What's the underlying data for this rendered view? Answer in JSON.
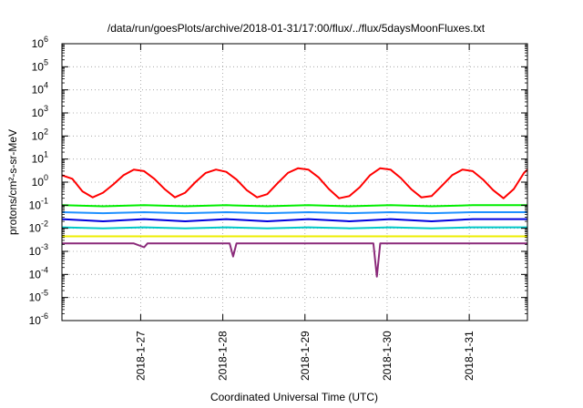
{
  "chart_data": {
    "type": "line",
    "title": "/data/run/goesPlots/archive/2018-01-31/17:00/flux/../flux/5daysMoonFluxes.txt",
    "xlabel": "Coordinated Universal Time (UTC)",
    "ylabel": "protons/cm²-s-sr-MeV",
    "y_scale": "log",
    "ylim": [
      1e-06,
      1000000.0
    ],
    "y_ticks": [
      {
        "value": 1e-06,
        "base": "10",
        "exp": "-6"
      },
      {
        "value": 1e-05,
        "base": "10",
        "exp": "-5"
      },
      {
        "value": 0.0001,
        "base": "10",
        "exp": "-4"
      },
      {
        "value": 0.001,
        "base": "10",
        "exp": "-3"
      },
      {
        "value": 0.01,
        "base": "10",
        "exp": "-2"
      },
      {
        "value": 0.1,
        "base": "10",
        "exp": "-1"
      },
      {
        "value": 1,
        "base": "10",
        "exp": "0"
      },
      {
        "value": 10,
        "base": "10",
        "exp": "1"
      },
      {
        "value": 100,
        "base": "10",
        "exp": "2"
      },
      {
        "value": 1000,
        "base": "10",
        "exp": "3"
      },
      {
        "value": 10000,
        "base": "10",
        "exp": "4"
      },
      {
        "value": 100000,
        "base": "10",
        "exp": "5"
      },
      {
        "value": 1000000,
        "base": "10",
        "exp": "6"
      }
    ],
    "xlim": [
      "2018-01-26 01:00",
      "2018-01-31 17:00"
    ],
    "x_ticks": [
      {
        "value": "2018-01-27 00:00",
        "label": "2018-1-27"
      },
      {
        "value": "2018-01-28 00:00",
        "label": "2018-1-28"
      },
      {
        "value": "2018-01-29 00:00",
        "label": "2018-1-29"
      },
      {
        "value": "2018-01-30 00:00",
        "label": "2018-1-30"
      },
      {
        "value": "2018-01-31 00:00",
        "label": "2018-1-31"
      }
    ],
    "grid": true,
    "legend": "none",
    "series": [
      {
        "color": "#ff0000",
        "values": [
          {
            "x": "2018-01-26 01:00",
            "y": 2.0
          },
          {
            "x": "2018-01-26 04:00",
            "y": 1.4
          },
          {
            "x": "2018-01-26 07:00",
            "y": 0.4
          },
          {
            "x": "2018-01-26 10:00",
            "y": 0.22
          },
          {
            "x": "2018-01-26 13:00",
            "y": 0.35
          },
          {
            "x": "2018-01-26 16:00",
            "y": 0.8
          },
          {
            "x": "2018-01-26 19:00",
            "y": 2.0
          },
          {
            "x": "2018-01-26 22:00",
            "y": 3.5
          },
          {
            "x": "2018-01-27 01:00",
            "y": 3.0
          },
          {
            "x": "2018-01-27 04:00",
            "y": 1.4
          },
          {
            "x": "2018-01-27 07:00",
            "y": 0.5
          },
          {
            "x": "2018-01-27 10:00",
            "y": 0.22
          },
          {
            "x": "2018-01-27 13:00",
            "y": 0.35
          },
          {
            "x": "2018-01-27 16:00",
            "y": 1.0
          },
          {
            "x": "2018-01-27 19:00",
            "y": 2.5
          },
          {
            "x": "2018-01-27 22:00",
            "y": 3.5
          },
          {
            "x": "2018-01-28 01:00",
            "y": 2.8
          },
          {
            "x": "2018-01-28 04:00",
            "y": 1.3
          },
          {
            "x": "2018-01-28 07:00",
            "y": 0.45
          },
          {
            "x": "2018-01-28 10:00",
            "y": 0.22
          },
          {
            "x": "2018-01-28 13:00",
            "y": 0.3
          },
          {
            "x": "2018-01-28 16:00",
            "y": 0.9
          },
          {
            "x": "2018-01-28 19:00",
            "y": 2.5
          },
          {
            "x": "2018-01-28 22:00",
            "y": 4.0
          },
          {
            "x": "2018-01-29 01:00",
            "y": 3.5
          },
          {
            "x": "2018-01-29 04:00",
            "y": 1.6
          },
          {
            "x": "2018-01-29 07:00",
            "y": 0.5
          },
          {
            "x": "2018-01-29 10:00",
            "y": 0.2
          },
          {
            "x": "2018-01-29 13:00",
            "y": 0.25
          },
          {
            "x": "2018-01-29 16:00",
            "y": 0.6
          },
          {
            "x": "2018-01-29 19:00",
            "y": 2.0
          },
          {
            "x": "2018-01-29 22:00",
            "y": 4.0
          },
          {
            "x": "2018-01-30 01:00",
            "y": 3.5
          },
          {
            "x": "2018-01-30 04:00",
            "y": 1.5
          },
          {
            "x": "2018-01-30 07:00",
            "y": 0.5
          },
          {
            "x": "2018-01-30 10:00",
            "y": 0.22
          },
          {
            "x": "2018-01-30 13:00",
            "y": 0.25
          },
          {
            "x": "2018-01-30 16:00",
            "y": 0.7
          },
          {
            "x": "2018-01-30 19:00",
            "y": 2.0
          },
          {
            "x": "2018-01-30 22:00",
            "y": 3.5
          },
          {
            "x": "2018-01-31 01:00",
            "y": 3.0
          },
          {
            "x": "2018-01-31 04:00",
            "y": 1.3
          },
          {
            "x": "2018-01-31 07:00",
            "y": 0.45
          },
          {
            "x": "2018-01-31 10:00",
            "y": 0.2
          },
          {
            "x": "2018-01-31 13:00",
            "y": 0.5
          },
          {
            "x": "2018-01-31 16:00",
            "y": 2.5
          },
          {
            "x": "2018-01-31 17:00",
            "y": 3.5
          }
        ]
      },
      {
        "color": "#00ee00",
        "values": [
          {
            "x": "2018-01-26 01:00",
            "y": 0.1
          },
          {
            "x": "2018-01-26 13:00",
            "y": 0.09
          },
          {
            "x": "2018-01-27 01:00",
            "y": 0.1
          },
          {
            "x": "2018-01-27 13:00",
            "y": 0.09
          },
          {
            "x": "2018-01-28 01:00",
            "y": 0.1
          },
          {
            "x": "2018-01-28 13:00",
            "y": 0.09
          },
          {
            "x": "2018-01-29 01:00",
            "y": 0.1
          },
          {
            "x": "2018-01-29 13:00",
            "y": 0.09
          },
          {
            "x": "2018-01-30 01:00",
            "y": 0.1
          },
          {
            "x": "2018-01-30 13:00",
            "y": 0.09
          },
          {
            "x": "2018-01-31 01:00",
            "y": 0.1
          },
          {
            "x": "2018-01-31 17:00",
            "y": 0.1
          }
        ]
      },
      {
        "color": "#1e90ff",
        "values": [
          {
            "x": "2018-01-26 01:00",
            "y": 0.05
          },
          {
            "x": "2018-01-26 13:00",
            "y": 0.045
          },
          {
            "x": "2018-01-27 01:00",
            "y": 0.05
          },
          {
            "x": "2018-01-27 13:00",
            "y": 0.045
          },
          {
            "x": "2018-01-28 01:00",
            "y": 0.05
          },
          {
            "x": "2018-01-28 13:00",
            "y": 0.045
          },
          {
            "x": "2018-01-29 01:00",
            "y": 0.05
          },
          {
            "x": "2018-01-29 13:00",
            "y": 0.045
          },
          {
            "x": "2018-01-30 01:00",
            "y": 0.05
          },
          {
            "x": "2018-01-30 13:00",
            "y": 0.045
          },
          {
            "x": "2018-01-31 01:00",
            "y": 0.05
          },
          {
            "x": "2018-01-31 17:00",
            "y": 0.05
          }
        ]
      },
      {
        "color": "#0000dd",
        "values": [
          {
            "x": "2018-01-26 01:00",
            "y": 0.025
          },
          {
            "x": "2018-01-26 13:00",
            "y": 0.02
          },
          {
            "x": "2018-01-27 01:00",
            "y": 0.025
          },
          {
            "x": "2018-01-27 13:00",
            "y": 0.02
          },
          {
            "x": "2018-01-28 01:00",
            "y": 0.025
          },
          {
            "x": "2018-01-28 13:00",
            "y": 0.02
          },
          {
            "x": "2018-01-29 01:00",
            "y": 0.025
          },
          {
            "x": "2018-01-29 13:00",
            "y": 0.02
          },
          {
            "x": "2018-01-30 01:00",
            "y": 0.025
          },
          {
            "x": "2018-01-30 13:00",
            "y": 0.02
          },
          {
            "x": "2018-01-31 01:00",
            "y": 0.025
          },
          {
            "x": "2018-01-31 17:00",
            "y": 0.025
          }
        ]
      },
      {
        "color": "#00c8c8",
        "values": [
          {
            "x": "2018-01-26 01:00",
            "y": 0.011
          },
          {
            "x": "2018-01-26 13:00",
            "y": 0.01
          },
          {
            "x": "2018-01-27 01:00",
            "y": 0.011
          },
          {
            "x": "2018-01-27 13:00",
            "y": 0.01
          },
          {
            "x": "2018-01-28 01:00",
            "y": 0.011
          },
          {
            "x": "2018-01-28 13:00",
            "y": 0.01
          },
          {
            "x": "2018-01-29 01:00",
            "y": 0.011
          },
          {
            "x": "2018-01-29 13:00",
            "y": 0.01
          },
          {
            "x": "2018-01-30 01:00",
            "y": 0.011
          },
          {
            "x": "2018-01-30 13:00",
            "y": 0.01
          },
          {
            "x": "2018-01-31 01:00",
            "y": 0.011
          },
          {
            "x": "2018-01-31 17:00",
            "y": 0.011
          }
        ]
      },
      {
        "color": "#eeee00",
        "values": [
          {
            "x": "2018-01-26 01:00",
            "y": 0.0045
          },
          {
            "x": "2018-01-27 01:00",
            "y": 0.0045
          },
          {
            "x": "2018-01-28 01:00",
            "y": 0.0045
          },
          {
            "x": "2018-01-29 01:00",
            "y": 0.0045
          },
          {
            "x": "2018-01-30 01:00",
            "y": 0.0045
          },
          {
            "x": "2018-01-31 01:00",
            "y": 0.0045
          },
          {
            "x": "2018-01-31 17:00",
            "y": 0.0045
          }
        ]
      },
      {
        "color": "#8b2a7a",
        "values": [
          {
            "x": "2018-01-26 01:00",
            "y": 0.0022
          },
          {
            "x": "2018-01-26 22:00",
            "y": 0.0022
          },
          {
            "x": "2018-01-27 01:00",
            "y": 0.0015
          },
          {
            "x": "2018-01-27 02:00",
            "y": 0.0022
          },
          {
            "x": "2018-01-28 02:00",
            "y": 0.0022
          },
          {
            "x": "2018-01-28 03:00",
            "y": 0.0006
          },
          {
            "x": "2018-01-28 04:00",
            "y": 0.0022
          },
          {
            "x": "2018-01-29 12:00",
            "y": 0.0022
          },
          {
            "x": "2018-01-29 20:00",
            "y": 0.0022
          },
          {
            "x": "2018-01-29 21:00",
            "y": 8e-05
          },
          {
            "x": "2018-01-29 22:00",
            "y": 0.0022
          },
          {
            "x": "2018-01-31 17:00",
            "y": 0.0022
          }
        ]
      }
    ]
  }
}
